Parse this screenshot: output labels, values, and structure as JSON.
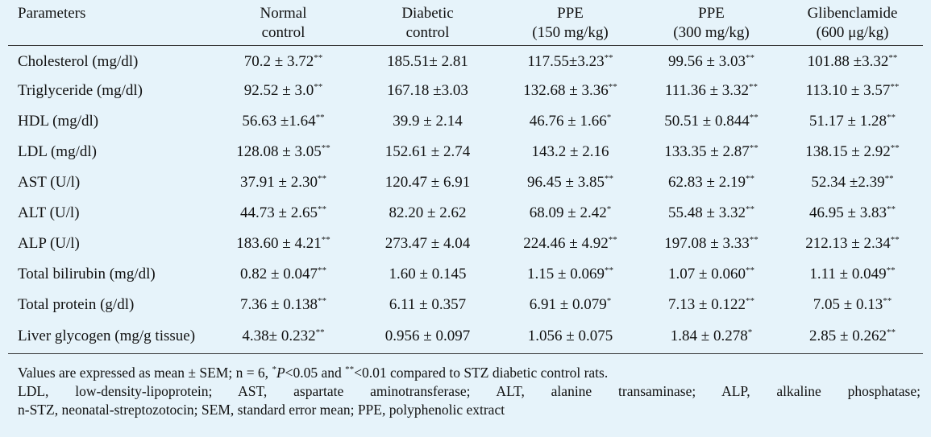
{
  "table": {
    "headers": [
      {
        "key": "param",
        "lines": [
          "Parameters"
        ]
      },
      {
        "key": "normal",
        "lines": [
          "Normal",
          "control"
        ]
      },
      {
        "key": "diabetic",
        "lines": [
          "Diabetic",
          "control"
        ]
      },
      {
        "key": "ppe150",
        "lines": [
          "PPE",
          "(150 mg/kg)"
        ]
      },
      {
        "key": "ppe300",
        "lines": [
          "PPE",
          "(300 mg/kg)"
        ]
      },
      {
        "key": "glib",
        "lines": [
          "Glibenclamide",
          "(600 μg/kg)"
        ]
      }
    ],
    "rows": [
      {
        "parameter": "Cholesterol (mg/dl)",
        "cells": [
          {
            "v": "70.2 ± 3.72",
            "s": "**"
          },
          {
            "v": "185.51± 2.81",
            "s": ""
          },
          {
            "v": "117.55±3.23",
            "s": "**"
          },
          {
            "v": "99.56 ± 3.03",
            "s": "**"
          },
          {
            "v": "101.88 ±3.32",
            "s": "**"
          }
        ]
      },
      {
        "parameter": "Triglyceride (mg/dl)",
        "cells": [
          {
            "v": "92.52 ± 3.0",
            "s": "**"
          },
          {
            "v": "167.18 ±3.03",
            "s": ""
          },
          {
            "v": "132.68 ± 3.36",
            "s": "**"
          },
          {
            "v": "111.36 ± 3.32",
            "s": "**"
          },
          {
            "v": "113.10 ± 3.57",
            "s": "**"
          }
        ]
      },
      {
        "parameter": "HDL (mg/dl)",
        "cells": [
          {
            "v": "56.63 ±1.64",
            "s": "**"
          },
          {
            "v": "39.9 ± 2.14",
            "s": ""
          },
          {
            "v": "46.76 ± 1.66",
            "s": "*"
          },
          {
            "v": "50.51 ± 0.844",
            "s": "**"
          },
          {
            "v": "51.17 ± 1.28",
            "s": "**"
          }
        ]
      },
      {
        "parameter": "LDL (mg/dl)",
        "cells": [
          {
            "v": "128.08 ± 3.05",
            "s": "**"
          },
          {
            "v": "152.61 ± 2.74",
            "s": ""
          },
          {
            "v": "143.2 ± 2.16",
            "s": ""
          },
          {
            "v": "133.35 ± 2.87",
            "s": "**"
          },
          {
            "v": "138.15 ± 2.92",
            "s": "**"
          }
        ]
      },
      {
        "parameter": "AST (U/l)",
        "cells": [
          {
            "v": "37.91 ± 2.30",
            "s": "**"
          },
          {
            "v": "120.47 ± 6.91",
            "s": ""
          },
          {
            "v": "96.45 ± 3.85",
            "s": "**"
          },
          {
            "v": "62.83 ± 2.19",
            "s": "**"
          },
          {
            "v": "52.34 ±2.39",
            "s": "**"
          }
        ]
      },
      {
        "parameter": "ALT (U/l)",
        "cells": [
          {
            "v": "44.73 ± 2.65",
            "s": "**"
          },
          {
            "v": "82.20 ± 2.62",
            "s": ""
          },
          {
            "v": "68.09 ± 2.42",
            "s": "*"
          },
          {
            "v": "55.48 ± 3.32",
            "s": "**"
          },
          {
            "v": "46.95 ± 3.83",
            "s": "**"
          }
        ]
      },
      {
        "parameter": "ALP (U/l)",
        "cells": [
          {
            "v": "183.60 ± 4.21",
            "s": "**"
          },
          {
            "v": "273.47 ± 4.04",
            "s": ""
          },
          {
            "v": "224.46 ± 4.92",
            "s": "**"
          },
          {
            "v": "197.08 ± 3.33",
            "s": "**"
          },
          {
            "v": "212.13 ± 2.34",
            "s": "**"
          }
        ]
      },
      {
        "parameter": "Total bilirubin (mg/dl)",
        "cells": [
          {
            "v": "0.82 ± 0.047",
            "s": "**"
          },
          {
            "v": "1.60 ± 0.145",
            "s": ""
          },
          {
            "v": "1.15 ± 0.069",
            "s": "**"
          },
          {
            "v": "1.07 ± 0.060",
            "s": "**"
          },
          {
            "v": "1.11 ± 0.049",
            "s": "**"
          }
        ]
      },
      {
        "parameter": "Total protein (g/dl)",
        "cells": [
          {
            "v": "7.36 ± 0.138",
            "s": "**"
          },
          {
            "v": "6.11 ± 0.357",
            "s": ""
          },
          {
            "v": "6.91 ± 0.079",
            "s": "*"
          },
          {
            "v": "7.13 ± 0.122",
            "s": "**"
          },
          {
            "v": "7.05 ± 0.13",
            "s": "**"
          }
        ]
      },
      {
        "parameter": "Liver glycogen (mg/g tissue)",
        "cells": [
          {
            "v": "4.38± 0.232",
            "s": "**"
          },
          {
            "v": "0.956 ± 0.097",
            "s": ""
          },
          {
            "v": "1.056 ± 0.075",
            "s": ""
          },
          {
            "v": "1.84 ± 0.278",
            "s": "*"
          },
          {
            "v": "2.85 ± 0.262",
            "s": "**"
          }
        ]
      }
    ]
  },
  "footnote": {
    "line1": {
      "a": "Values are expressed as mean ± SEM; n = 6, ",
      "sup1": "*",
      "p": "P",
      "b": "<0.05 and ",
      "sup2": "**",
      "c": "<0.01 compared to STZ diabetic control rats."
    },
    "line2": "LDL, low-density-lipoprotein; AST, aspartate aminotransferase; ALT, alanine transaminase; ALP, alkaline phosphatase;",
    "line3": "n-STZ, neonatal-streptozotocin; SEM, standard error mean; PPE, polyphenolic extract"
  }
}
